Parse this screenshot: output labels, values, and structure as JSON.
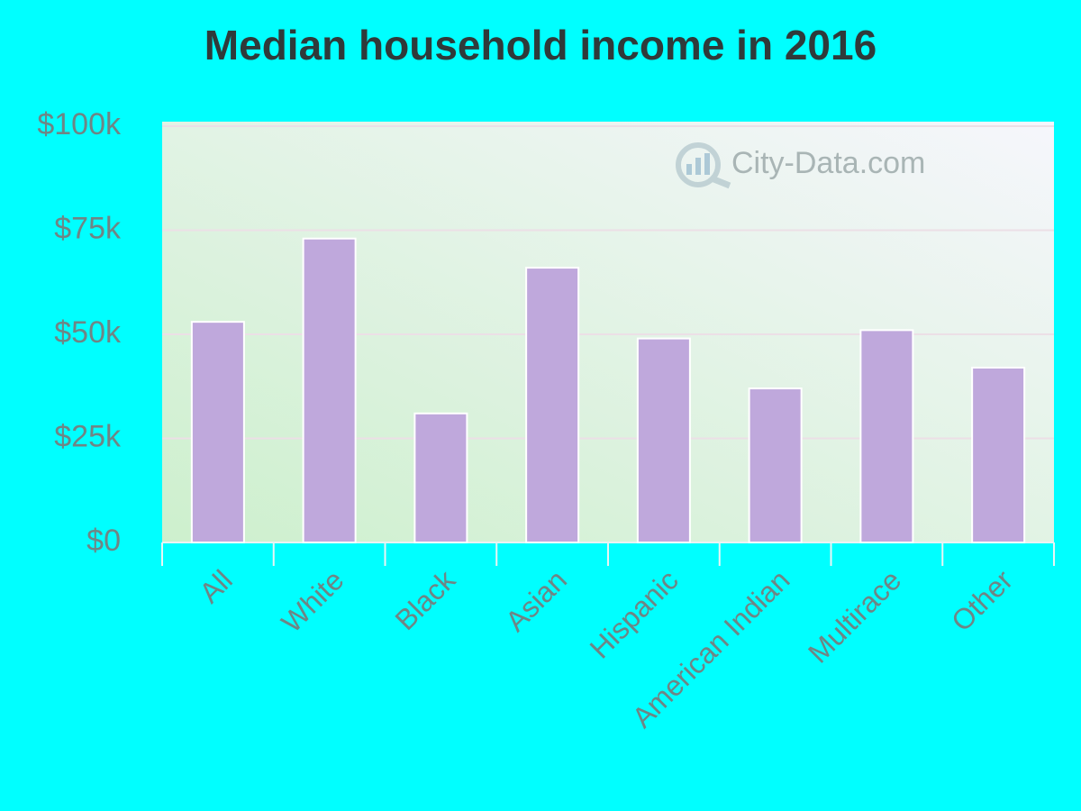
{
  "chart_data": {
    "type": "bar",
    "title": "Median household income in 2016",
    "categories": [
      "All",
      "White",
      "Black",
      "Asian",
      "Hispanic",
      "American Indian",
      "Multirace",
      "Other"
    ],
    "values": [
      53000,
      73000,
      31000,
      66000,
      49000,
      37000,
      51000,
      42000
    ],
    "color": "#bfa8dc",
    "ylim": [
      0,
      100000
    ],
    "yticks": [
      {
        "value": 0,
        "label": "$0"
      },
      {
        "value": 25000,
        "label": "$25k"
      },
      {
        "value": 50000,
        "label": "$50k"
      },
      {
        "value": 75000,
        "label": "$75k"
      },
      {
        "value": 100000,
        "label": "$100k"
      }
    ],
    "grid": true,
    "watermark": "City-Data.com"
  }
}
